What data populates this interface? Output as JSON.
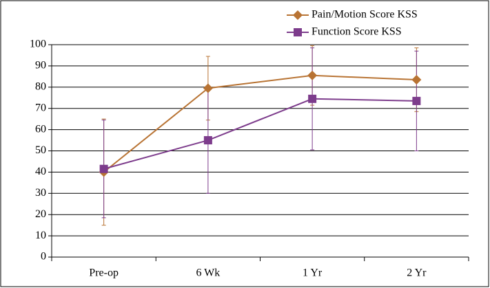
{
  "chart_data": {
    "type": "line",
    "categories": [
      "Pre-op",
      "6 Wk",
      "1 Yr",
      "2 Yr"
    ],
    "series": [
      {
        "name": "Pain/Motion Score KSS",
        "color": "#b87333",
        "marker": "diamond",
        "values": [
          40,
          79.5,
          85.5,
          83.5
        ],
        "errors": [
          25,
          15,
          14,
          15
        ]
      },
      {
        "name": "Function Score KSS",
        "color": "#7d3c8c",
        "marker": "square",
        "values": [
          41.5,
          55,
          74.5,
          73.5
        ],
        "errors": [
          23,
          25,
          24,
          23.5
        ]
      }
    ],
    "ylim": [
      0,
      100
    ],
    "yticks": [
      0,
      10,
      20,
      30,
      40,
      50,
      60,
      70,
      80,
      90,
      100
    ],
    "grid": true,
    "legend": "top-right"
  }
}
